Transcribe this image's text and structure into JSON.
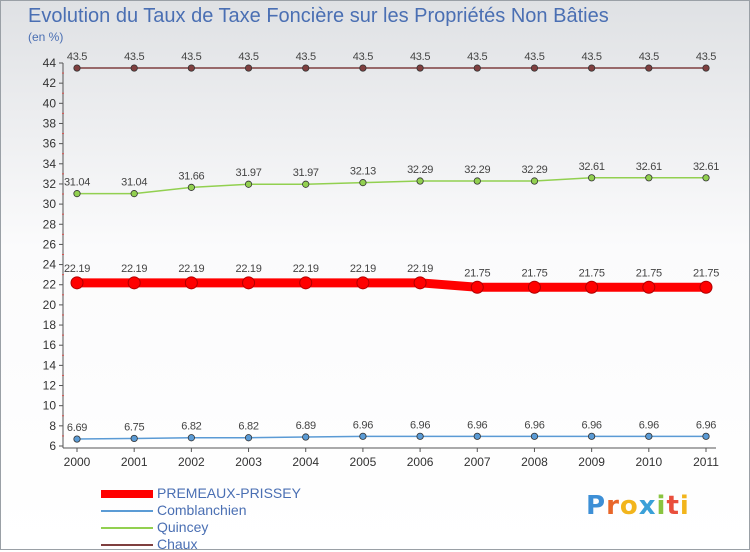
{
  "chart_data": {
    "type": "line",
    "title": "Evolution du Taux de Taxe Foncière sur les Propriétés Non Bâties",
    "ylabel": "(en %)",
    "xlabel": "",
    "x": [
      "2000",
      "2001",
      "2002",
      "2003",
      "2004",
      "2005",
      "2006",
      "2007",
      "2008",
      "2009",
      "2010",
      "2011"
    ],
    "ylim": [
      6,
      44
    ],
    "yticks": [
      6,
      8,
      10,
      12,
      14,
      16,
      18,
      20,
      22,
      24,
      26,
      28,
      30,
      32,
      34,
      36,
      38,
      40,
      42,
      44
    ],
    "series": [
      {
        "name": "PREMEAUX-PRISSEY",
        "color": "#ff0000",
        "values": [
          22.19,
          22.19,
          22.19,
          22.19,
          22.19,
          22.19,
          22.19,
          21.75,
          21.75,
          21.75,
          21.75,
          21.75
        ],
        "labels": [
          "22.19",
          "22.19",
          "22.19",
          "22.19",
          "22.19",
          "22.19",
          "22.19",
          "21.75",
          "21.75",
          "21.75",
          "21.75",
          "21.75"
        ]
      },
      {
        "name": "Comblanchien",
        "color": "#5b9bd5",
        "values": [
          6.69,
          6.75,
          6.82,
          6.82,
          6.89,
          6.96,
          6.96,
          6.96,
          6.96,
          6.96,
          6.96,
          6.96
        ],
        "labels": [
          "6.69",
          "6.75",
          "6.82",
          "6.82",
          "6.89",
          "6.96",
          "6.96",
          "6.96",
          "6.96",
          "6.96",
          "6.96",
          "6.96"
        ]
      },
      {
        "name": "Quincey",
        "color": "#92d050",
        "values": [
          31.04,
          31.04,
          31.66,
          31.97,
          31.97,
          32.13,
          32.29,
          32.29,
          32.29,
          32.61,
          32.61,
          32.61
        ],
        "labels": [
          "31.04",
          "31.04",
          "31.66",
          "31.97",
          "31.97",
          "32.13",
          "32.29",
          "32.29",
          "32.29",
          "32.61",
          "32.61",
          "32.61"
        ]
      },
      {
        "name": "Chaux",
        "color": "#7f3f3f",
        "values": [
          43.5,
          43.5,
          43.5,
          43.5,
          43.5,
          43.5,
          43.5,
          43.5,
          43.5,
          43.5,
          43.5,
          43.5
        ],
        "labels": [
          "43.5",
          "43.5",
          "43.5",
          "43.5",
          "43.5",
          "43.5",
          "43.5",
          "43.5",
          "43.5",
          "43.5",
          "43.5",
          "43.5"
        ]
      }
    ],
    "legend": [
      "PREMEAUX-PRISSEY",
      "Comblanchien",
      "Quincey",
      "Chaux"
    ],
    "grid": false,
    "legend_placement": "bottom-left"
  },
  "brand": {
    "logo_text": "Proxiti"
  }
}
